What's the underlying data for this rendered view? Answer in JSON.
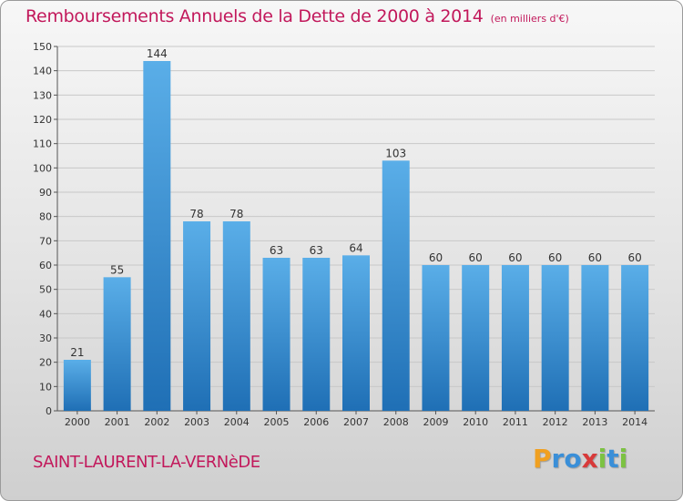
{
  "title": "Remboursements Annuels de la Dette de 2000 à 2014",
  "subtitle": "(en milliers d'€)",
  "commune": "SAINT-LAURENT-LA-VERNèDE",
  "logo": {
    "text": "Proxiti",
    "letters": [
      {
        "ch": "P",
        "color": "#f0a020"
      },
      {
        "ch": "r",
        "color": "#3a8fd8"
      },
      {
        "ch": "o",
        "color": "#3a8fd8"
      },
      {
        "ch": "x",
        "color": "#d83a3a"
      },
      {
        "ch": "i",
        "color": "#7cc242"
      },
      {
        "ch": "t",
        "color": "#3a8fd8"
      },
      {
        "ch": "i",
        "color": "#7cc242"
      }
    ]
  },
  "colors": {
    "title": "#c2185b",
    "bar_top": "#5aaee8",
    "bar_bottom": "#1f6fb5",
    "grid": "#c8c8c8",
    "axis_text": "#333333"
  },
  "chart_data": {
    "type": "bar",
    "categories": [
      "2000",
      "2001",
      "2002",
      "2003",
      "2004",
      "2005",
      "2006",
      "2007",
      "2008",
      "2009",
      "2010",
      "2011",
      "2012",
      "2013",
      "2014"
    ],
    "values": [
      21,
      55,
      144,
      78,
      78,
      63,
      63,
      64,
      103,
      60,
      60,
      60,
      60,
      60,
      60
    ],
    "ylim": [
      0,
      150
    ],
    "yticks": [
      0,
      10,
      20,
      30,
      40,
      50,
      60,
      70,
      80,
      90,
      100,
      110,
      120,
      130,
      140,
      150
    ],
    "grid": true,
    "data_labels": true
  }
}
